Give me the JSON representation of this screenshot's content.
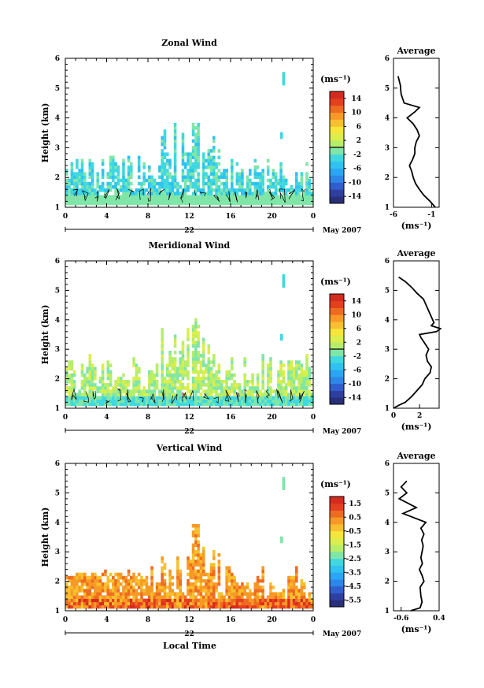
{
  "figure": {
    "xlabel": "Local Time"
  },
  "colors": {
    "scale": [
      "#2a2f7a",
      "#2f3fa0",
      "#2f5fcf",
      "#2e86e8",
      "#2aa6f2",
      "#2ec3f0",
      "#3fd8e0",
      "#7fe6a8",
      "#b6ee6a",
      "#dcee4a",
      "#f5e637",
      "#f8c02c",
      "#f79a25",
      "#ef6b21",
      "#e63e1e",
      "#d62a1e"
    ],
    "contour": "#000000",
    "axis": "#000000",
    "profile": "#000000"
  },
  "chart_data": [
    {
      "type": "heatmap",
      "title": "Zonal Wind",
      "ylabel": "Height (km)",
      "ylim": [
        1,
        6
      ],
      "yticks": [
        "1",
        "2",
        "3",
        "4",
        "5",
        "6"
      ],
      "xlim": [
        0,
        24
      ],
      "xticks": [
        "0",
        "4",
        "8",
        "12",
        "16",
        "20",
        "0"
      ],
      "date_axis": {
        "day": "22",
        "month_label": "May 2007"
      },
      "colorbar": {
        "unit_label": "(ms⁻¹)",
        "range": [
          -16,
          16
        ],
        "tick_labels": [
          "14",
          "10",
          "6",
          "2",
          "-2",
          "-6",
          "-10",
          "-14"
        ],
        "zero_line": true
      },
      "field": {
        "x_range": [
          0,
          24
        ],
        "y_range": [
          1,
          6
        ],
        "base_value": -3,
        "base_top": [
          1.5,
          2.7
        ],
        "max_top": 3.8,
        "values_near_surface": -1
      },
      "average_profile": {
        "title": "Average",
        "xlabel": "(ms⁻¹)",
        "xlim": [
          -6,
          0
        ],
        "xticks": [
          "-6",
          "-1"
        ],
        "height_km": [
          1.0,
          1.2,
          1.4,
          1.6,
          1.8,
          2.0,
          2.2,
          2.4,
          2.6,
          2.8,
          3.0,
          3.2,
          3.4,
          3.6,
          3.8,
          4.0,
          4.2,
          4.35,
          4.5,
          4.8,
          5.1,
          5.3,
          5.4
        ],
        "value_ms": [
          -0.5,
          -1.2,
          -2.0,
          -2.6,
          -3.1,
          -3.4,
          -3.6,
          -3.9,
          -3.5,
          -3.2,
          -3.2,
          -3.0,
          -2.6,
          -2.9,
          -3.4,
          -4.2,
          -3.2,
          -2.6,
          -4.6,
          -5.0,
          -5.1,
          -5.3,
          -5.4
        ]
      }
    },
    {
      "type": "heatmap",
      "title": "Meridional Wind",
      "ylabel": "Height (km)",
      "ylim": [
        1,
        6
      ],
      "yticks": [
        "1",
        "2",
        "3",
        "4",
        "5",
        "6"
      ],
      "xlim": [
        0,
        24
      ],
      "xticks": [
        "0",
        "4",
        "8",
        "12",
        "16",
        "20",
        "0"
      ],
      "date_axis": {
        "day": "22",
        "month_label": "May 2007"
      },
      "colorbar": {
        "unit_label": "(ms⁻¹)",
        "range": [
          -16,
          16
        ],
        "tick_labels": [
          "14",
          "10",
          "6",
          "2",
          "-2",
          "-6",
          "-10",
          "-14"
        ],
        "zero_line": true
      },
      "field": {
        "x_range": [
          0,
          24
        ],
        "y_range": [
          1,
          6
        ],
        "base_value": 1,
        "base_top": [
          1.5,
          2.8
        ],
        "max_top": 4.0,
        "values_near_surface": -2
      },
      "average_profile": {
        "title": "Average",
        "xlabel": "(ms⁻¹)",
        "xlim": [
          0,
          3.5
        ],
        "xticks": [
          "0",
          "2"
        ],
        "height_km": [
          1.0,
          1.1,
          1.2,
          1.4,
          1.6,
          1.8,
          2.0,
          2.2,
          2.4,
          2.6,
          2.8,
          3.0,
          3.2,
          3.4,
          3.5,
          3.6,
          3.7,
          3.8,
          3.9,
          4.7,
          4.9,
          5.1,
          5.3,
          5.45
        ],
        "value_ms": [
          0.0,
          0.4,
          0.9,
          1.4,
          1.8,
          2.2,
          2.4,
          2.8,
          2.9,
          2.6,
          2.5,
          2.7,
          2.4,
          2.1,
          2.0,
          3.3,
          3.6,
          2.9,
          3.1,
          2.3,
          1.8,
          1.4,
          0.9,
          0.4
        ]
      }
    },
    {
      "type": "heatmap",
      "title": "Vertical Wind",
      "ylabel": "Height (km)",
      "ylim": [
        1,
        6
      ],
      "yticks": [
        "1",
        "2",
        "3",
        "4",
        "5",
        "6"
      ],
      "xlim": [
        0,
        24
      ],
      "xticks": [
        "0",
        "4",
        "8",
        "12",
        "16",
        "20",
        "0"
      ],
      "date_axis": {
        "day": "22",
        "month_label": "May 2007"
      },
      "colorbar": {
        "unit_label": "(ms⁻¹)",
        "range": [
          -6.0,
          2.0
        ],
        "tick_labels": [
          "1.5",
          "0.5",
          "-0.5",
          "-1.5",
          "-2.5",
          "-3.5",
          "-4.5",
          "-5.5"
        ],
        "zero_line": false
      },
      "field": {
        "x_range": [
          0,
          24
        ],
        "y_range": [
          1,
          6
        ],
        "base_value": 0.2,
        "base_top": [
          1.3,
          2.6
        ],
        "max_top": 4.0,
        "values_near_surface": 0.8
      },
      "average_profile": {
        "title": "Average",
        "xlabel": "(ms⁻¹)",
        "xlim": [
          -0.8,
          0.4
        ],
        "xticks": [
          "-0.6",
          "0.4"
        ],
        "height_km": [
          1.0,
          1.1,
          1.3,
          1.5,
          1.8,
          2.0,
          2.2,
          2.4,
          2.6,
          2.8,
          3.0,
          3.2,
          3.4,
          3.6,
          3.8,
          4.0,
          4.2,
          4.3,
          4.5,
          4.7,
          4.8,
          5.0,
          5.2,
          5.4
        ],
        "value_ms": [
          -0.35,
          -0.1,
          -0.05,
          -0.08,
          -0.1,
          0.0,
          -0.05,
          -0.12,
          -0.04,
          -0.08,
          -0.05,
          -0.02,
          -0.06,
          0.0,
          -0.08,
          0.05,
          -0.35,
          -0.55,
          -0.2,
          -0.5,
          -0.65,
          -0.45,
          -0.6,
          -0.45
        ]
      }
    }
  ]
}
